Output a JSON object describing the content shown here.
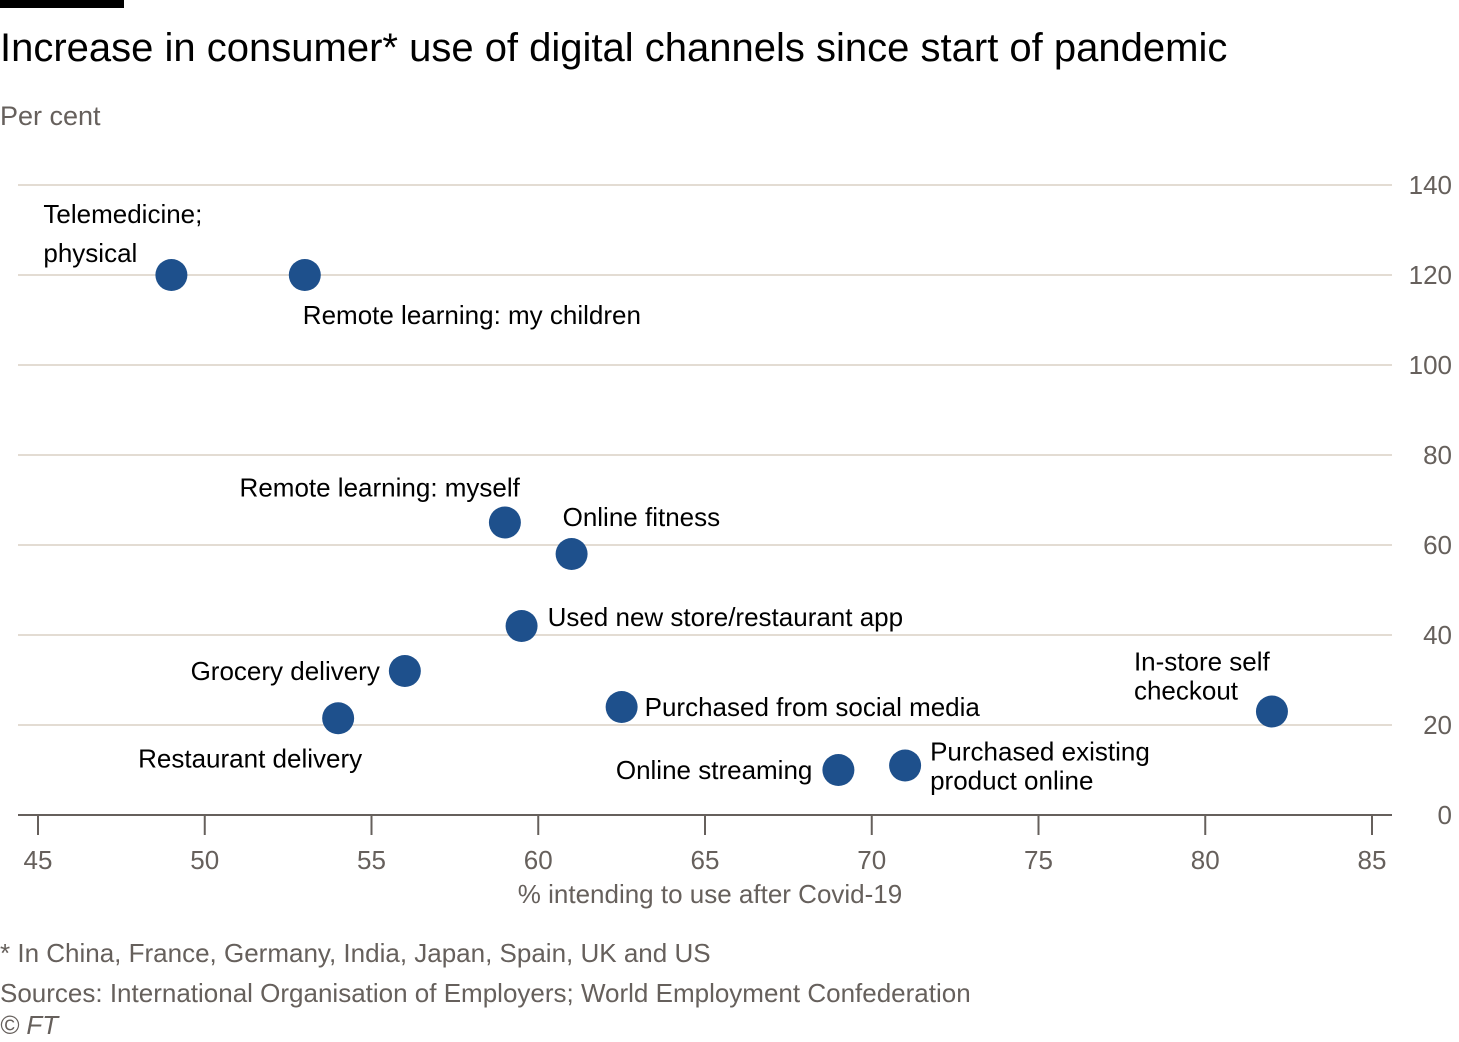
{
  "title": "Increase in consumer* use of digital channels since start of pandemic",
  "subtitle": "Per cent",
  "footnote": "* In China, France, Germany, India, Japan, Spain, UK and US",
  "sources": "Sources: International Organisation of Employers; World Employment Confederation",
  "credit": "© FT",
  "colors": {
    "dot": "#1e508c",
    "grid": "#e3dcd3",
    "axis": "#66605c"
  },
  "chart_data": {
    "type": "scatter",
    "title": "Increase in consumer* use of digital channels since start of pandemic",
    "xlabel": "% intending to use after Covid-19",
    "ylabel": "Per cent",
    "xlim": [
      45,
      85
    ],
    "ylim": [
      0,
      140
    ],
    "xticks": [
      45,
      50,
      55,
      60,
      65,
      70,
      75,
      80,
      85
    ],
    "yticks": [
      0,
      20,
      40,
      60,
      80,
      100,
      120,
      140
    ],
    "grid": true,
    "points": [
      {
        "label": [
          "Telemedicine;",
          "physical"
        ],
        "x": 49,
        "y": 120
      },
      {
        "label": [
          "Remote learning: my children"
        ],
        "x": 53,
        "y": 120
      },
      {
        "label": [
          "Remote learning: myself"
        ],
        "x": 59,
        "y": 65
      },
      {
        "label": [
          "Online fitness"
        ],
        "x": 61,
        "y": 58
      },
      {
        "label": [
          "Used new store/restaurant app"
        ],
        "x": 59.5,
        "y": 42
      },
      {
        "label": [
          "Grocery delivery"
        ],
        "x": 56,
        "y": 32
      },
      {
        "label": [
          "Restaurant delivery"
        ],
        "x": 54,
        "y": 21.5
      },
      {
        "label": [
          "Purchased from social media"
        ],
        "x": 62.5,
        "y": 24
      },
      {
        "label": [
          "Online streaming"
        ],
        "x": 69,
        "y": 10
      },
      {
        "label": [
          "Purchased existing",
          "product online"
        ],
        "x": 71,
        "y": 11
      },
      {
        "label": [
          "In-store self",
          "checkout"
        ],
        "x": 82,
        "y": 23
      }
    ]
  }
}
